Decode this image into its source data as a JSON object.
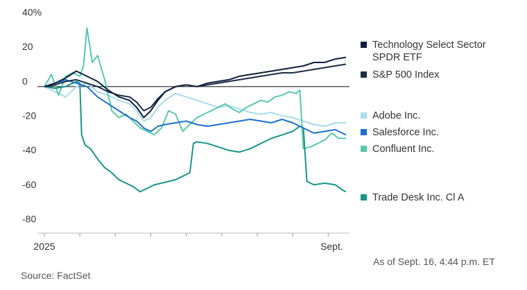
{
  "chart_data": {
    "type": "line",
    "title": "",
    "xlabel": "",
    "ylabel": "",
    "ylim": [
      -85,
      43
    ],
    "y_ticks": [
      {
        "value": 40,
        "label": "40%"
      },
      {
        "value": 20,
        "label": "20"
      },
      {
        "value": 0,
        "label": "0"
      },
      {
        "value": -20,
        "label": "-20"
      },
      {
        "value": -40,
        "label": "-40"
      },
      {
        "value": -60,
        "label": "-60"
      },
      {
        "value": -80,
        "label": "-80"
      }
    ],
    "x_range": [
      0,
      8.6
    ],
    "x_month_ticks": [
      0,
      1,
      2,
      3,
      4,
      5,
      6,
      7,
      8
    ],
    "x_labels": [
      {
        "x": 0,
        "label": "2025"
      },
      {
        "x": 8.1,
        "label": "Sept."
      }
    ],
    "zero_line": true,
    "grid": false,
    "legend_position": "right",
    "series": [
      {
        "name": "Technology Select Sector SPDR ETF",
        "color": "#0d1f3c",
        "x": [
          0,
          0.3,
          0.6,
          0.9,
          1.2,
          1.5,
          1.8,
          2.1,
          2.4,
          2.6,
          2.8,
          3.0,
          3.2,
          3.4,
          3.7,
          4.0,
          4.3,
          4.6,
          4.9,
          5.2,
          5.5,
          5.8,
          6.1,
          6.4,
          6.7,
          7.0,
          7.3,
          7.6,
          7.9,
          8.2,
          8.5
        ],
        "y": [
          0,
          2,
          5,
          9,
          6,
          3,
          -2,
          -6,
          -8,
          -12,
          -18,
          -14,
          -8,
          -3,
          0,
          1,
          0,
          2,
          3,
          4,
          6,
          7,
          8,
          9,
          10,
          11,
          12,
          14,
          14,
          16,
          17
        ]
      },
      {
        "name": "S&P 500 Index",
        "color": "#1a2c44",
        "x": [
          0,
          0.3,
          0.6,
          0.9,
          1.2,
          1.5,
          1.8,
          2.1,
          2.4,
          2.6,
          2.8,
          3.0,
          3.2,
          3.4,
          3.7,
          4.0,
          4.3,
          4.6,
          4.9,
          5.2,
          5.5,
          5.8,
          6.1,
          6.4,
          6.7,
          7.0,
          7.3,
          7.6,
          7.9,
          8.2,
          8.5
        ],
        "y": [
          0,
          1,
          3,
          4,
          2,
          0,
          -3,
          -5,
          -6,
          -9,
          -14,
          -12,
          -7,
          -3,
          0,
          1,
          0,
          1,
          2,
          3,
          4,
          5,
          6,
          7,
          8,
          8,
          9,
          10,
          11,
          12,
          13
        ]
      },
      {
        "name": "Adobe Inc.",
        "color": "#a8dcef",
        "x": [
          0,
          0.3,
          0.6,
          0.9,
          1.2,
          1.5,
          1.8,
          2.1,
          2.4,
          2.6,
          2.8,
          3.0,
          3.2,
          3.4,
          3.7,
          4.0,
          4.3,
          4.6,
          4.9,
          5.2,
          5.5,
          5.8,
          6.1,
          6.4,
          6.7,
          7.0,
          7.3,
          7.6,
          7.9,
          8.2,
          8.5
        ],
        "y": [
          0,
          -3,
          -6,
          0,
          2,
          -3,
          -5,
          -8,
          -10,
          -14,
          -20,
          -18,
          -12,
          -8,
          -4,
          -6,
          -8,
          -10,
          -12,
          -11,
          -13,
          -15,
          -16,
          -15,
          -17,
          -18,
          -20,
          -22,
          -23,
          -21,
          -21
        ]
      },
      {
        "name": "Salesforce Inc.",
        "color": "#1e6fd0",
        "x": [
          0,
          0.3,
          0.6,
          0.9,
          1.2,
          1.5,
          1.8,
          2.1,
          2.4,
          2.6,
          2.8,
          3.0,
          3.2,
          3.4,
          3.7,
          4.0,
          4.3,
          4.6,
          4.9,
          5.2,
          5.5,
          5.8,
          6.1,
          6.4,
          6.7,
          7.0,
          7.3,
          7.6,
          7.9,
          8.2,
          8.5
        ],
        "y": [
          0,
          2,
          4,
          2,
          0,
          -6,
          -10,
          -14,
          -18,
          -20,
          -24,
          -26,
          -23,
          -22,
          -21,
          -20,
          -22,
          -23,
          -22,
          -21,
          -20,
          -19,
          -20,
          -21,
          -19,
          -21,
          -24,
          -27,
          -26,
          -25,
          -28
        ]
      },
      {
        "name": "Confluent Inc.",
        "color": "#58c8ab",
        "x": [
          0,
          0.2,
          0.4,
          0.6,
          0.8,
          1.0,
          1.1,
          1.2,
          1.35,
          1.5,
          1.7,
          1.9,
          2.1,
          2.3,
          2.5,
          2.7,
          2.9,
          3.1,
          3.3,
          3.5,
          3.7,
          3.9,
          4.1,
          4.3,
          4.5,
          4.7,
          4.9,
          5.1,
          5.3,
          5.5,
          5.7,
          5.9,
          6.1,
          6.3,
          6.5,
          6.7,
          6.9,
          7.1,
          7.2,
          7.3,
          7.5,
          7.7,
          7.9,
          8.1,
          8.3,
          8.5
        ],
        "y": [
          0,
          7,
          -5,
          6,
          8,
          6,
          12,
          34,
          14,
          18,
          4,
          -14,
          -18,
          -16,
          -20,
          -24,
          -26,
          -28,
          -24,
          -14,
          -16,
          -26,
          -22,
          -18,
          -16,
          -14,
          -12,
          -10,
          -13,
          -15,
          -12,
          -10,
          -8,
          -9,
          -6,
          -5,
          -3,
          -4,
          -2,
          -36,
          -35,
          -33,
          -31,
          -27,
          -30,
          -30
        ]
      },
      {
        "name": "Trade Desk Inc. Cl A",
        "color": "#18948a",
        "x": [
          0,
          0.3,
          0.6,
          0.9,
          1.0,
          1.05,
          1.15,
          1.3,
          1.5,
          1.7,
          1.9,
          2.1,
          2.3,
          2.5,
          2.7,
          2.9,
          3.1,
          3.3,
          3.5,
          3.7,
          3.9,
          4.1,
          4.2,
          4.3,
          4.6,
          4.9,
          5.2,
          5.5,
          5.8,
          6.1,
          6.4,
          6.7,
          7.0,
          7.2,
          7.3,
          7.4,
          7.6,
          7.9,
          8.2,
          8.4,
          8.5
        ],
        "y": [
          0,
          -1,
          0,
          3,
          2,
          -28,
          -34,
          -36,
          -42,
          -47,
          -50,
          -54,
          -56,
          -58,
          -61,
          -59,
          -57,
          -56,
          -55,
          -54,
          -52,
          -50,
          -33,
          -32,
          -33,
          -35,
          -37,
          -38,
          -36,
          -33,
          -30,
          -28,
          -26,
          -23,
          -24,
          -55,
          -57,
          -56,
          -57,
          -60,
          -61
        ]
      }
    ]
  },
  "legend": {
    "items": [
      {
        "label": "Technology Select Sector SPDR ETF",
        "color": "#0d1f3c"
      },
      {
        "label": "S&P 500 Index",
        "color": "#1a2c44"
      },
      {
        "label": "Adobe Inc.",
        "color": "#a8dcef"
      },
      {
        "label": "Salesforce Inc.",
        "color": "#1e6fd0"
      },
      {
        "label": "Confluent Inc.",
        "color": "#58c8ab"
      },
      {
        "label": "Trade Desk Inc. Cl A",
        "color": "#18948a"
      }
    ]
  },
  "footer": {
    "source": "Source: FactSet",
    "as_of": "As of Sept. 16, 4:44 p.m. ET"
  }
}
